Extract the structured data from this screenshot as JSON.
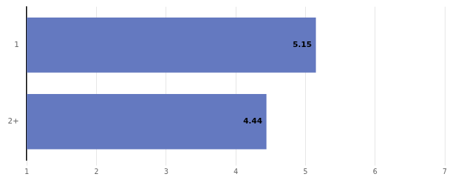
{
  "chart_data": {
    "type": "bar",
    "orientation": "horizontal",
    "categories": [
      "1",
      "2+"
    ],
    "values": [
      5.15,
      4.44
    ],
    "color": "#6479c0",
    "xlim": [
      1,
      7
    ],
    "xticks": [
      1,
      2,
      3,
      4,
      5,
      6,
      7
    ],
    "grid": true,
    "data_labels": true
  }
}
